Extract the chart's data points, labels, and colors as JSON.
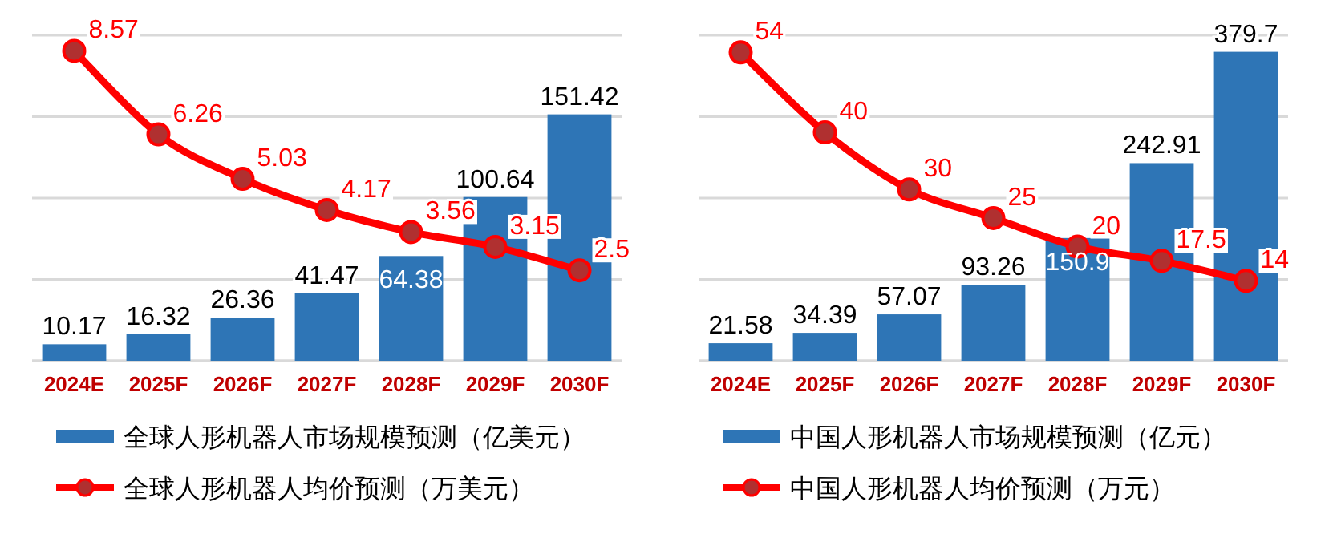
{
  "chart_data": [
    {
      "type": "bar",
      "categories": [
        "2024E",
        "2025F",
        "2026F",
        "2027F",
        "2028F",
        "2029F",
        "2030F"
      ],
      "series": [
        {
          "name": "全球人形机器人市场规模预测（亿美元）",
          "color": "#2e75b6",
          "values": [
            10.17,
            16.32,
            26.36,
            41.47,
            64.38,
            100.64,
            151.42
          ]
        },
        {
          "name": "全球人形机器人均价预测（万美元）",
          "type": "line",
          "axis": "y2",
          "color": "#ff0000",
          "values": [
            8.57,
            6.26,
            5.03,
            4.17,
            3.56,
            3.15,
            2.5
          ]
        }
      ],
      "ylim": [
        0,
        200
      ],
      "yticks": [
        {
          "value": 0,
          "label": null
        },
        {
          "value": 50,
          "label": null
        },
        {
          "value": 100,
          "label": null
        },
        {
          "value": 150,
          "label": null
        },
        {
          "value": 200,
          "label": null
        }
      ],
      "y2lim": [
        0,
        9
      ],
      "tick_labels": "x",
      "grid": "y",
      "legend": "bottom",
      "marker": "circle",
      "data_labels": true
    },
    {
      "type": "bar",
      "categories": [
        "2024E",
        "2025F",
        "2026F",
        "2027F",
        "2028F",
        "2029F",
        "2030F"
      ],
      "series": [
        {
          "name": "中国人形机器人市场规模预测（亿元）",
          "color": "#2e75b6",
          "values": [
            21.58,
            34.39,
            57.07,
            93.26,
            150.9,
            242.91,
            379.7
          ]
        },
        {
          "name": "中国人形机器人均价预测（万元）",
          "type": "line",
          "axis": "y2",
          "color": "#ff0000",
          "values": [
            54,
            40,
            30,
            25,
            20,
            17.5,
            14
          ]
        }
      ],
      "ylim": [
        0,
        400
      ],
      "yticks": [
        {
          "value": 0,
          "label": null
        },
        {
          "value": 100,
          "label": null
        },
        {
          "value": 200,
          "label": null
        },
        {
          "value": 300,
          "label": null
        },
        {
          "value": 400,
          "label": null
        }
      ],
      "y2lim": [
        0,
        57
      ],
      "tick_labels": "x",
      "grid": "y",
      "legend": "bottom",
      "marker": "circle",
      "data_labels": true
    }
  ]
}
